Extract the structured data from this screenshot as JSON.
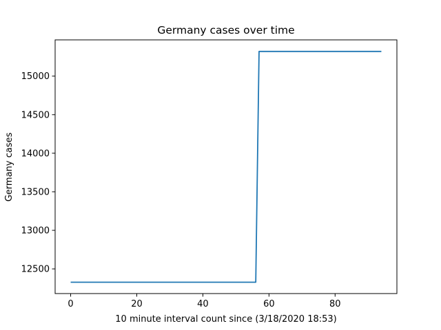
{
  "chart_data": {
    "type": "line",
    "title": "Germany cases over time",
    "xlabel": "10 minute interval count since (3/18/2020 18:53)",
    "ylabel": "Germany cases",
    "xlim": [
      -4.7,
      98.7
    ],
    "ylim": [
      12180,
      15470
    ],
    "x_ticks": [
      0,
      20,
      40,
      60,
      80
    ],
    "y_ticks": [
      12500,
      13000,
      13500,
      14000,
      14500,
      15000
    ],
    "grid": false,
    "legend": "none",
    "series": [
      {
        "color": "#1f77b4",
        "x": [
          0,
          56,
          57,
          94
        ],
        "y": [
          12327,
          12327,
          15320,
          15320
        ]
      }
    ]
  }
}
